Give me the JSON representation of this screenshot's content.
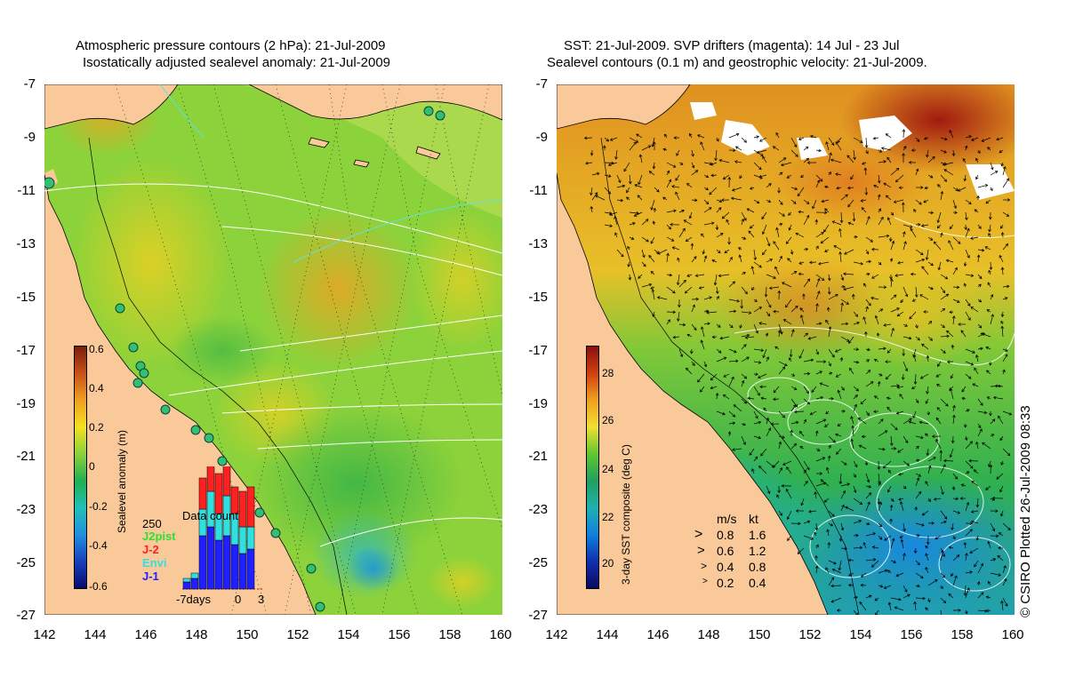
{
  "left_panel": {
    "title_line1": "Atmospheric pressure contours (2 hPa): 21-Jul-2009",
    "title_line2": "Isostatically adjusted sealevel anomaly: 21-Jul-2009",
    "y_ticks": [
      "-7",
      "-9",
      "-11",
      "-13",
      "-15",
      "-17",
      "-19",
      "-21",
      "-23",
      "-25",
      "-27"
    ],
    "x_ticks": [
      "142",
      "144",
      "146",
      "148",
      "150",
      "152",
      "154",
      "156",
      "158",
      "160"
    ],
    "colorbar": {
      "title": "Sealevel anomaly (m)",
      "ticks": [
        "0.6",
        "0.4",
        "0.2",
        "0",
        "-0.2",
        "-0.4",
        "-0.6"
      ],
      "colors": [
        "#7a1e0a",
        "#c8501a",
        "#f0a020",
        "#f5e020",
        "#8ad23c",
        "#22b050",
        "#20c0b8",
        "#2090e0",
        "#1840c0",
        "#0a0a70"
      ]
    },
    "data_count": {
      "title": "Data count",
      "max_label": "250",
      "legend": [
        {
          "name": "J2pist",
          "color": "#30e030"
        },
        {
          "name": "J-2",
          "color": "#ff2020"
        },
        {
          "name": "Envi",
          "color": "#30e0e0"
        },
        {
          "name": "J-1",
          "color": "#2020ff"
        }
      ],
      "x_labels": [
        "-7days",
        "0",
        "3"
      ]
    }
  },
  "right_panel": {
    "title_line1": "SST: 21-Jul-2009. SVP drifters (magenta): 14 Jul - 23 Jul",
    "title_line2": "Sealevel contours (0.1 m) and geostrophic velocity: 21-Jul-2009.",
    "y_ticks": [
      "-7",
      "-9",
      "-11",
      "-13",
      "-15",
      "-17",
      "-19",
      "-21",
      "-23",
      "-25",
      "-27"
    ],
    "x_ticks": [
      "142",
      "144",
      "146",
      "148",
      "150",
      "152",
      "154",
      "156",
      "158",
      "160"
    ],
    "colorbar": {
      "title": "3-day SST composite (deg C)",
      "ticks": [
        "28",
        "26",
        "24",
        "22",
        "20"
      ],
      "colors": [
        "#8a1010",
        "#d04010",
        "#f0a020",
        "#f0e030",
        "#60c830",
        "#20a060",
        "#20b0b0",
        "#1080e0",
        "#1030b0",
        "#0a0a60"
      ]
    },
    "velocity_legend": {
      "header_ms": "m/s",
      "header_kt": "kt",
      "rows": [
        {
          "ms": "0.8",
          "kt": "1.6"
        },
        {
          "ms": "0.6",
          "kt": "1.2"
        },
        {
          "ms": "0.4",
          "kt": "0.8"
        },
        {
          "ms": "0.2",
          "kt": "0.4"
        }
      ]
    }
  },
  "copyright": "© CSIRO Plotted 26-Jul-2009 08:33",
  "colors": {
    "land": "#f9c99a"
  }
}
